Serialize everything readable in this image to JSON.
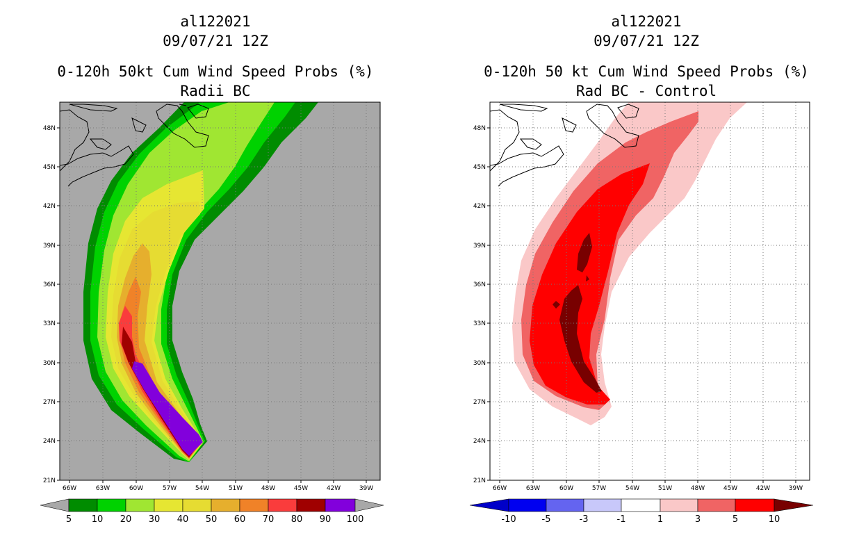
{
  "left": {
    "title_line1": "al122021",
    "title_line2": "09/07/21 12Z",
    "title_line3": "0-120h 50kt Cum Wind Speed Probs (%)",
    "title_line4": "Radii BC",
    "lon_labels": [
      "66W",
      "63W",
      "60W",
      "57W",
      "54W",
      "51W",
      "48W",
      "45W",
      "42W",
      "39W"
    ],
    "lat_labels": [
      "21N",
      "24N",
      "27N",
      "30N",
      "33N",
      "36N",
      "39N",
      "42N",
      "45N",
      "48N"
    ],
    "colorbar_labels": [
      "5",
      "10",
      "20",
      "30",
      "40",
      "50",
      "60",
      "70",
      "80",
      "90",
      "100"
    ],
    "colors": [
      "#008c00",
      "#00d200",
      "#a0e632",
      "#e6e632",
      "#e6dc32",
      "#e6af2d",
      "#f08228",
      "#fa3c3c",
      "#a00000",
      "#8200dc"
    ],
    "background_color": "#a8a8a8"
  },
  "right": {
    "title_line1": "al122021",
    "title_line2": "09/07/21 12Z",
    "title_line3": "0-120h 50 kt Cum Wind Speed Probs (%)",
    "title_line4": "Rad BC - Control",
    "lon_labels": [
      "66W",
      "63W",
      "60W",
      "57W",
      "54W",
      "51W",
      "48W",
      "45W",
      "42W",
      "39W"
    ],
    "lat_labels": [
      "21N",
      "24N",
      "27N",
      "30N",
      "33N",
      "36N",
      "39N",
      "42N",
      "45N",
      "48N"
    ],
    "colorbar_labels": [
      "-10",
      "-5",
      "-3",
      "-1",
      "1",
      "3",
      "5",
      "10"
    ],
    "colors": [
      "#0000c8",
      "#0000f0",
      "#6464f0",
      "#c8c8fa",
      "#ffffff",
      "#fac8c8",
      "#f06464",
      "#ff0000",
      "#780000"
    ]
  }
}
